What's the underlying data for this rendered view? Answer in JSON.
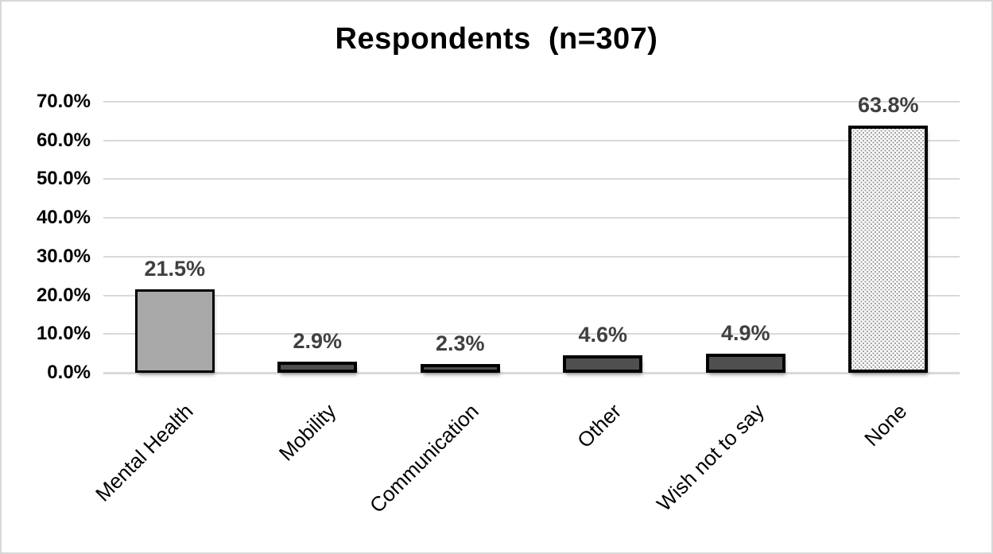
{
  "chart_data": {
    "type": "bar",
    "title": "Respondents  (n=307)",
    "categories": [
      "Mental Health",
      "Mobility",
      "Communication",
      "Other",
      "Wish not to say",
      "None"
    ],
    "values": [
      21.5,
      2.9,
      2.3,
      4.6,
      4.9,
      63.8
    ],
    "value_labels": [
      "21.5%",
      "2.9%",
      "2.3%",
      "4.6%",
      "4.9%",
      "63.8%"
    ],
    "xlabel": "",
    "ylabel": "",
    "ylim": [
      0,
      70
    ],
    "y_tick_labels": [
      "0.0%",
      "10.0%",
      "20.0%",
      "30.0%",
      "40.0%",
      "50.0%",
      "60.0%",
      "70.0%"
    ],
    "grid": true,
    "legend": false,
    "bar_styles": [
      {
        "fill": "#a8a8a8",
        "pattern": "solid",
        "border": "#000000"
      },
      {
        "fill": "#4f4f4f",
        "pattern": "solid",
        "border": "#000000"
      },
      {
        "fill": "#4f4f4f",
        "pattern": "solid",
        "border": "#000000"
      },
      {
        "fill": "#4f4f4f",
        "pattern": "solid",
        "border": "#000000"
      },
      {
        "fill": "#4f4f4f",
        "pattern": "solid",
        "border": "#000000"
      },
      {
        "fill": "#ffffff",
        "pattern": "dots",
        "dot_color": "#9c9c9c",
        "border": "#000000"
      }
    ],
    "colors": {
      "gridline": "#d9d9d9",
      "axis_line": "#d9d9d9",
      "data_label": "#404040",
      "title_text": "#000000",
      "tick_text": "#000000",
      "background": "#ffffff",
      "frame_border": "#d7d7d7"
    }
  }
}
